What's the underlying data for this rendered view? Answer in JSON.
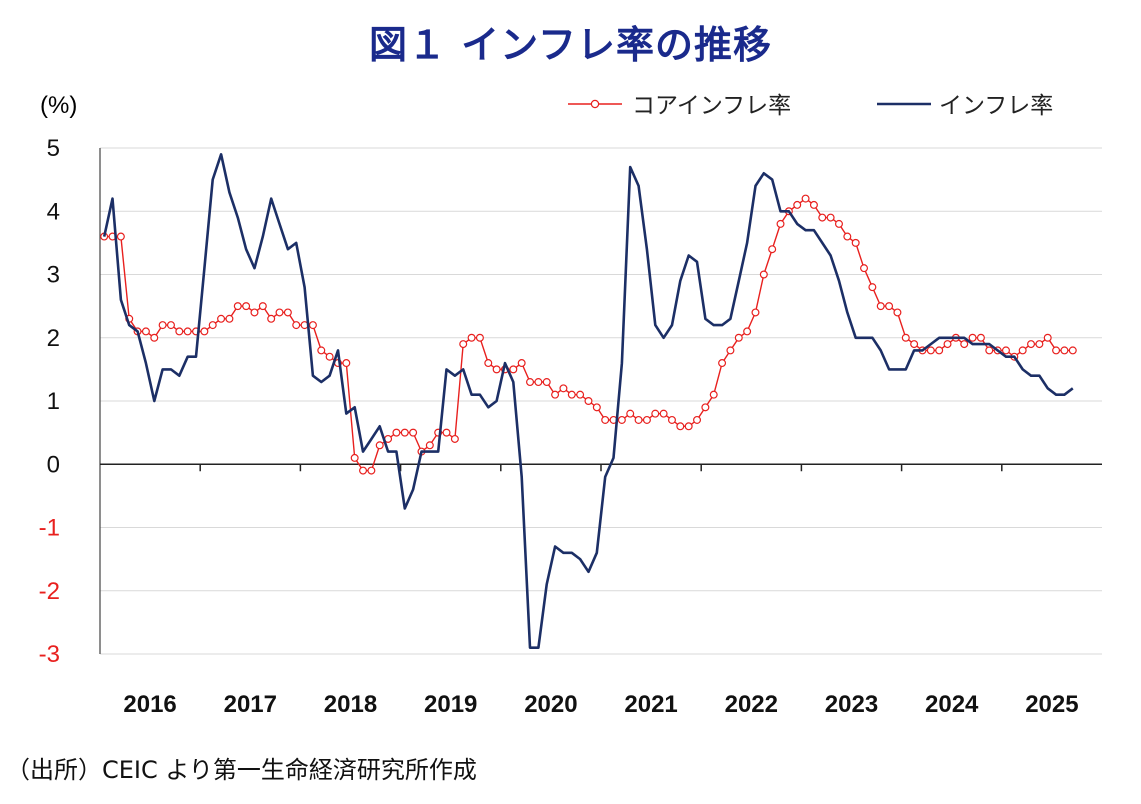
{
  "header": {
    "title": "図１ インフレ率の推移"
  },
  "footer": {
    "source": "（出所）CEIC より第一生命経済研究所作成"
  },
  "chart_data": {
    "type": "line",
    "title": "図１ インフレ率の推移",
    "ylabel": "(%)",
    "xlabel": "",
    "ylim": [
      -3,
      5
    ],
    "yticks": [
      5,
      4,
      3,
      2,
      1,
      0,
      -1,
      -2,
      -3
    ],
    "negative_tick_color": "#e8201e",
    "x_labels": [
      "2016",
      "2017",
      "2018",
      "2019",
      "2020",
      "2021",
      "2022",
      "2023",
      "2024",
      "2025"
    ],
    "x_start": "2016-01",
    "grid": true,
    "legend_position": "top-right",
    "series": [
      {
        "name": "コアインフレ率",
        "color": "#e8201e",
        "marker": "circle-open",
        "values": [
          3.6,
          3.6,
          3.6,
          2.3,
          2.1,
          2.1,
          2.0,
          2.2,
          2.2,
          2.1,
          2.1,
          2.1,
          2.1,
          2.2,
          2.3,
          2.3,
          2.5,
          2.5,
          2.4,
          2.5,
          2.3,
          2.4,
          2.4,
          2.2,
          2.2,
          2.2,
          1.8,
          1.7,
          1.6,
          1.6,
          0.1,
          -0.1,
          -0.1,
          0.3,
          0.4,
          0.5,
          0.5,
          0.5,
          0.2,
          0.3,
          0.5,
          0.5,
          0.4,
          1.9,
          2.0,
          2.0,
          1.6,
          1.5,
          1.5,
          1.5,
          1.6,
          1.3,
          1.3,
          1.3,
          1.1,
          1.2,
          1.1,
          1.1,
          1.0,
          0.9,
          0.7,
          0.7,
          0.7,
          0.8,
          0.7,
          0.7,
          0.8,
          0.8,
          0.7,
          0.6,
          0.6,
          0.7,
          0.9,
          1.1,
          1.6,
          1.8,
          2.0,
          2.1,
          2.4,
          3.0,
          3.4,
          3.8,
          4.0,
          4.1,
          4.2,
          4.1,
          3.9,
          3.9,
          3.8,
          3.6,
          3.5,
          3.1,
          2.8,
          2.5,
          2.5,
          2.4,
          2.0,
          1.9,
          1.8,
          1.8,
          1.8,
          1.9,
          2.0,
          1.9,
          2.0,
          2.0,
          1.8,
          1.8,
          1.8,
          1.7,
          1.8,
          1.9,
          1.9,
          2.0,
          1.8,
          1.8,
          1.8
        ]
      },
      {
        "name": "インフレ率",
        "color": "#1c2f66",
        "marker": "none",
        "values": [
          3.6,
          4.2,
          2.6,
          2.2,
          2.1,
          1.6,
          1.0,
          1.5,
          1.5,
          1.4,
          1.7,
          1.7,
          3.1,
          4.5,
          4.9,
          4.3,
          3.9,
          3.4,
          3.1,
          3.6,
          4.2,
          3.8,
          3.4,
          3.5,
          2.8,
          1.4,
          1.3,
          1.4,
          1.8,
          0.8,
          0.9,
          0.2,
          0.4,
          0.6,
          0.2,
          0.2,
          -0.7,
          -0.4,
          0.2,
          0.2,
          0.2,
          1.5,
          1.4,
          1.5,
          1.1,
          1.1,
          0.9,
          1.0,
          1.6,
          1.3,
          -0.2,
          -2.9,
          -2.9,
          -1.9,
          -1.3,
          -1.4,
          -1.4,
          -1.5,
          -1.7,
          -1.4,
          -0.2,
          0.1,
          1.6,
          4.7,
          4.4,
          3.4,
          2.2,
          2.0,
          2.2,
          2.9,
          3.3,
          3.2,
          2.3,
          2.2,
          2.2,
          2.3,
          2.9,
          3.5,
          4.4,
          4.6,
          4.5,
          4.0,
          4.0,
          3.8,
          3.7,
          3.7,
          3.5,
          3.3,
          2.9,
          2.4,
          2.0,
          2.0,
          2.0,
          1.8,
          1.5,
          1.5,
          1.5,
          1.8,
          1.8,
          1.9,
          2.0,
          2.0,
          2.0,
          2.0,
          1.9,
          1.9,
          1.9,
          1.8,
          1.7,
          1.7,
          1.5,
          1.4,
          1.4,
          1.2,
          1.1,
          1.1,
          1.2
        ]
      }
    ]
  }
}
